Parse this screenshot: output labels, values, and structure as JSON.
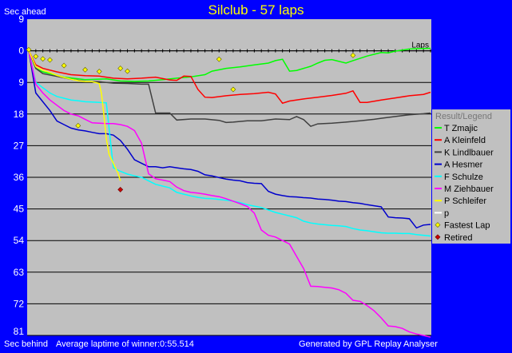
{
  "title": "Silclub - 57 laps",
  "y_top_label": "Sec ahead",
  "y_bottom_label": "Sec behind",
  "footer_left": "Average laptime of winner:0:55.514",
  "footer_right": "Generated by GPL Replay Analyser",
  "colors": {
    "background": "#0000ff",
    "plot": "#c0c0c0",
    "title": "#ffff00"
  },
  "chart_data": {
    "type": "line",
    "x_label": "Laps",
    "x_range": [
      0,
      57
    ],
    "ylim": [
      -9,
      81
    ],
    "y_axis_inverted": true,
    "y_ticks": [
      -9,
      0,
      9,
      18,
      27,
      36,
      45,
      54,
      63,
      72,
      81
    ],
    "grid": true,
    "legend_title": "Result/Legend",
    "legend_position": "right",
    "series": [
      {
        "name": "T Zmajic",
        "color": "#00ff00",
        "points": [
          [
            0,
            0
          ],
          [
            1,
            5
          ],
          [
            2,
            6
          ],
          [
            3,
            6.5
          ],
          [
            5,
            7.5
          ],
          [
            8,
            8.2
          ],
          [
            11,
            8
          ],
          [
            13,
            8.6
          ],
          [
            15,
            8.7
          ],
          [
            17,
            8.6
          ],
          [
            19,
            8.2
          ],
          [
            21,
            7.8
          ],
          [
            23,
            7.4
          ],
          [
            25,
            6.8
          ],
          [
            26,
            5.8
          ],
          [
            28,
            5
          ],
          [
            30,
            4.6
          ],
          [
            32,
            4
          ],
          [
            34,
            3.5
          ],
          [
            35,
            2.8
          ],
          [
            36,
            2.4
          ],
          [
            37,
            5.8
          ],
          [
            38,
            5.6
          ],
          [
            40,
            4.4
          ],
          [
            41,
            3.5
          ],
          [
            42,
            2.7
          ],
          [
            43,
            2.5
          ],
          [
            45,
            3.5
          ],
          [
            46,
            2.8
          ],
          [
            48,
            1.5
          ],
          [
            50,
            0.5
          ],
          [
            51,
            0.6
          ],
          [
            52,
            0.1
          ],
          [
            53,
            -0.2
          ],
          [
            54,
            -0.5
          ],
          [
            55,
            -0.6
          ],
          [
            57,
            -0.7
          ]
        ]
      },
      {
        "name": "A Kleinfeld",
        "color": "#ff0000",
        "points": [
          [
            0,
            0
          ],
          [
            1,
            4
          ],
          [
            2,
            5
          ],
          [
            4,
            6
          ],
          [
            6,
            6.8
          ],
          [
            8,
            7.1
          ],
          [
            10,
            7.2
          ],
          [
            12,
            7.8
          ],
          [
            14,
            8
          ],
          [
            16,
            7.8
          ],
          [
            18,
            7.5
          ],
          [
            20,
            8.3
          ],
          [
            21,
            8.4
          ],
          [
            22,
            7.2
          ],
          [
            23,
            7.3
          ],
          [
            24,
            11
          ],
          [
            25,
            13.2
          ],
          [
            26,
            13.3
          ],
          [
            28,
            12.8
          ],
          [
            30,
            12.4
          ],
          [
            32,
            12.2
          ],
          [
            34,
            11.8
          ],
          [
            35,
            12.3
          ],
          [
            36,
            14.9
          ],
          [
            37,
            14.3
          ],
          [
            39,
            13.7
          ],
          [
            41,
            13.2
          ],
          [
            43,
            12.7
          ],
          [
            45,
            12.1
          ],
          [
            46,
            11.4
          ],
          [
            47,
            14.7
          ],
          [
            48,
            14.7
          ],
          [
            50,
            14
          ],
          [
            52,
            13.4
          ],
          [
            54,
            12.8
          ],
          [
            56,
            12.4
          ],
          [
            57,
            11.8
          ]
        ]
      },
      {
        "name": "K Lindlbauer",
        "color": "#404040",
        "points": [
          [
            0,
            0
          ],
          [
            1,
            5
          ],
          [
            2,
            6.5
          ],
          [
            4,
            7.3
          ],
          [
            6,
            8.1
          ],
          [
            8,
            8.7
          ],
          [
            10,
            8.8
          ],
          [
            12,
            9.2
          ],
          [
            14,
            9.3
          ],
          [
            16,
            9.5
          ],
          [
            17,
            9.5
          ],
          [
            18,
            17.7
          ],
          [
            20,
            17.7
          ],
          [
            21,
            19.7
          ],
          [
            23,
            19.4
          ],
          [
            25,
            19.4
          ],
          [
            27,
            19.8
          ],
          [
            28,
            20.4
          ],
          [
            29,
            20.3
          ],
          [
            31,
            19.9
          ],
          [
            33,
            19.9
          ],
          [
            35,
            19.4
          ],
          [
            37,
            19.6
          ],
          [
            38,
            18.7
          ],
          [
            39,
            19.6
          ],
          [
            40,
            21.5
          ],
          [
            41,
            20.8
          ],
          [
            43,
            20.6
          ],
          [
            45,
            20.3
          ],
          [
            47,
            19.9
          ],
          [
            49,
            19.5
          ],
          [
            50,
            19.2
          ],
          [
            52,
            18.7
          ],
          [
            54,
            18.2
          ],
          [
            56,
            17.9
          ],
          [
            57,
            17.7
          ]
        ]
      },
      {
        "name": "A Hesmer",
        "color": "#0000cc",
        "points": [
          [
            0,
            0
          ],
          [
            1,
            12
          ],
          [
            2,
            14.5
          ],
          [
            3,
            17
          ],
          [
            4,
            20
          ],
          [
            5,
            21
          ],
          [
            6,
            22
          ],
          [
            7,
            22.5
          ],
          [
            8,
            22.8
          ],
          [
            9,
            23.2
          ],
          [
            10,
            23.6
          ],
          [
            11,
            23.6
          ],
          [
            12,
            24
          ],
          [
            13,
            25.5
          ],
          [
            14,
            28
          ],
          [
            15,
            31
          ],
          [
            16,
            32
          ],
          [
            17,
            33
          ],
          [
            18,
            33
          ],
          [
            19,
            33.3
          ],
          [
            20,
            33
          ],
          [
            21,
            33.3
          ],
          [
            22,
            33.6
          ],
          [
            23,
            33.8
          ],
          [
            24,
            34.3
          ],
          [
            25,
            35.3
          ],
          [
            26,
            35.6
          ],
          [
            27,
            36.1
          ],
          [
            28,
            36.5
          ],
          [
            29,
            36.8
          ],
          [
            30,
            37
          ],
          [
            31,
            37.5
          ],
          [
            32,
            37.7
          ],
          [
            33,
            37.8
          ],
          [
            34,
            40
          ],
          [
            35,
            40.8
          ],
          [
            36,
            41.2
          ],
          [
            37,
            41.5
          ],
          [
            38,
            41.6
          ],
          [
            39,
            41.8
          ],
          [
            40,
            41.9
          ],
          [
            41,
            42.2
          ],
          [
            42,
            42.3
          ],
          [
            43,
            42.5
          ],
          [
            44,
            42.8
          ],
          [
            45,
            42.9
          ],
          [
            46,
            43.2
          ],
          [
            47,
            43.4
          ],
          [
            48,
            43.8
          ],
          [
            49,
            44.1
          ],
          [
            50,
            44.4
          ],
          [
            51,
            47.3
          ],
          [
            52,
            47.5
          ],
          [
            53,
            47.6
          ],
          [
            54,
            47.8
          ],
          [
            55,
            50.4
          ],
          [
            56,
            49.6
          ],
          [
            57,
            49.4
          ]
        ]
      },
      {
        "name": "F Schulze",
        "color": "#00ffff",
        "points": [
          [
            0,
            0
          ],
          [
            1,
            9
          ],
          [
            2,
            10.5
          ],
          [
            3,
            12
          ],
          [
            4,
            13
          ],
          [
            5,
            13.5
          ],
          [
            6,
            14
          ],
          [
            7,
            14.2
          ],
          [
            8,
            14.5
          ],
          [
            9,
            14.6
          ],
          [
            10,
            14.7
          ],
          [
            11,
            14.8
          ],
          [
            12,
            33.3
          ],
          [
            13,
            34.3
          ],
          [
            14,
            35.1
          ],
          [
            15,
            35.6
          ],
          [
            16,
            36
          ],
          [
            17,
            37
          ],
          [
            18,
            38
          ],
          [
            19,
            38.5
          ],
          [
            20,
            39
          ],
          [
            21,
            40.3
          ],
          [
            22,
            40.8
          ],
          [
            23,
            41.3
          ],
          [
            24,
            41.7
          ],
          [
            25,
            42
          ],
          [
            26,
            42.1
          ],
          [
            27,
            42.3
          ],
          [
            28,
            42.5
          ],
          [
            29,
            42.8
          ],
          [
            30,
            43.2
          ],
          [
            31,
            43.8
          ],
          [
            32,
            44.2
          ],
          [
            33,
            44.6
          ],
          [
            34,
            45.3
          ],
          [
            35,
            46
          ],
          [
            36,
            46.5
          ],
          [
            37,
            47
          ],
          [
            38,
            47.5
          ],
          [
            39,
            48.5
          ],
          [
            40,
            49
          ],
          [
            41,
            49.3
          ],
          [
            42,
            49.5
          ],
          [
            43,
            49.7
          ],
          [
            44,
            49.8
          ],
          [
            45,
            50
          ],
          [
            46,
            50.6
          ],
          [
            47,
            51
          ],
          [
            48,
            51.2
          ],
          [
            49,
            51.5
          ],
          [
            50,
            51.8
          ],
          [
            51,
            51.9
          ],
          [
            52,
            51.9
          ],
          [
            53,
            52
          ],
          [
            54,
            52
          ],
          [
            55,
            52.3
          ],
          [
            56,
            52.5
          ],
          [
            57,
            52.7
          ]
        ]
      },
      {
        "name": "M Ziehbauer",
        "color": "#ff00ff",
        "points": [
          [
            0,
            0
          ],
          [
            1,
            9.5
          ],
          [
            2,
            12
          ],
          [
            3,
            14
          ],
          [
            4,
            15.5
          ],
          [
            5,
            17
          ],
          [
            6,
            18
          ],
          [
            7,
            18.5
          ],
          [
            8,
            19.5
          ],
          [
            9,
            20.5
          ],
          [
            10,
            20.6
          ],
          [
            11,
            20.7
          ],
          [
            12,
            20.7
          ],
          [
            13,
            21
          ],
          [
            14,
            21.5
          ],
          [
            15,
            22.7
          ],
          [
            16,
            26.3
          ],
          [
            17,
            35
          ],
          [
            18,
            36.4
          ],
          [
            19,
            36.8
          ],
          [
            20,
            37.2
          ],
          [
            21,
            38.8
          ],
          [
            22,
            39.8
          ],
          [
            23,
            40.3
          ],
          [
            24,
            40.5
          ],
          [
            25,
            40.8
          ],
          [
            26,
            41.2
          ],
          [
            27,
            41.5
          ],
          [
            28,
            42.1
          ],
          [
            29,
            42.8
          ],
          [
            30,
            43.5
          ],
          [
            31,
            44.3
          ],
          [
            32,
            46.2
          ],
          [
            33,
            51
          ],
          [
            34,
            52.5
          ],
          [
            35,
            53
          ],
          [
            36,
            54
          ],
          [
            37,
            55
          ],
          [
            38,
            58.5
          ],
          [
            39,
            62
          ],
          [
            40,
            67
          ],
          [
            41,
            67.1
          ],
          [
            42,
            67.3
          ],
          [
            43,
            67.5
          ],
          [
            44,
            68
          ],
          [
            45,
            69
          ],
          [
            46,
            71
          ],
          [
            47,
            71.3
          ],
          [
            48,
            72.5
          ],
          [
            49,
            74
          ],
          [
            50,
            76
          ],
          [
            51,
            78.3
          ],
          [
            52,
            78.5
          ],
          [
            53,
            79
          ],
          [
            54,
            80
          ],
          [
            55,
            80.6
          ],
          [
            56,
            81
          ],
          [
            57,
            81.5
          ]
        ]
      },
      {
        "name": "P Schleifer",
        "color": "#ffff00",
        "points": [
          [
            0,
            0
          ],
          [
            1,
            4.5
          ],
          [
            2,
            5.5
          ],
          [
            3,
            6.2
          ],
          [
            4,
            7
          ],
          [
            5,
            7.6
          ],
          [
            6,
            8.1
          ],
          [
            7,
            8.5
          ],
          [
            8,
            8.8
          ],
          [
            9,
            8.8
          ],
          [
            10,
            9.3
          ],
          [
            10.3,
            12
          ],
          [
            10.6,
            17
          ],
          [
            11,
            25
          ],
          [
            11.4,
            29.5
          ],
          [
            12,
            32
          ],
          [
            12.7,
            35
          ],
          [
            13,
            37
          ]
        ]
      },
      {
        "name": "p",
        "color": "#ffffff",
        "points": []
      }
    ],
    "fastest_laps": [
      [
        0,
        -0.3
      ],
      [
        1,
        1.6
      ],
      [
        2,
        2.3
      ],
      [
        3,
        2.6
      ],
      [
        5,
        4.2
      ],
      [
        8,
        5.4
      ],
      [
        10,
        5.9
      ],
      [
        13,
        5
      ],
      [
        14,
        5.8
      ],
      [
        27,
        2.4
      ],
      [
        29,
        11
      ],
      [
        46,
        1.3
      ],
      [
        7,
        21.3
      ]
    ],
    "retired": [
      [
        13,
        39.5
      ]
    ],
    "legend_extra": [
      "Fastest Lap",
      "Retired"
    ]
  }
}
